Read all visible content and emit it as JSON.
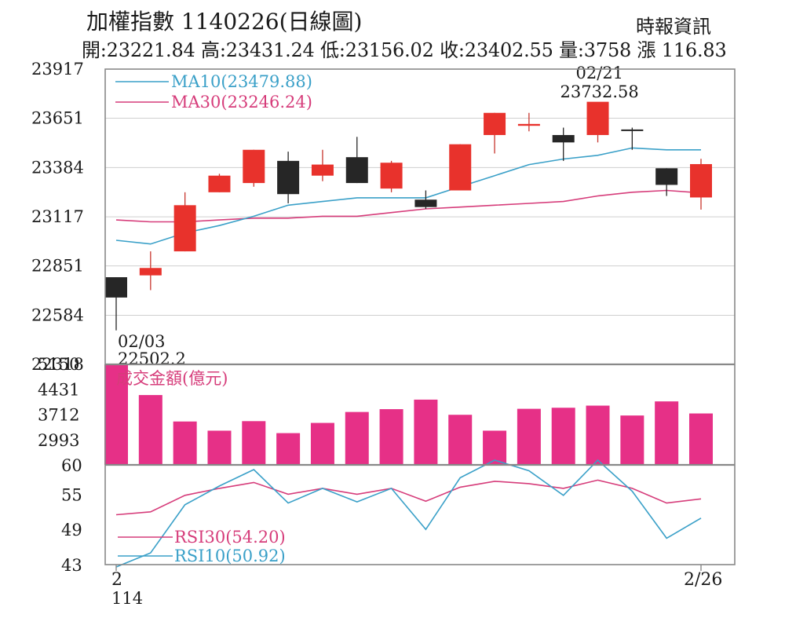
{
  "header": {
    "title": "加權指數 1140226(日線圖)",
    "source": "時報資訊",
    "stats": "開:23221.84 高:23431.24 低:23156.02 收:23402.55 量:3758 漲 116.83"
  },
  "chart_data": {
    "type": "candlestick",
    "price_panel": {
      "y_ticks": [
        23917,
        23651,
        23384,
        23117,
        22851,
        22584,
        22318
      ],
      "ylim": [
        22318,
        23917
      ],
      "legend": [
        {
          "label": "MA10(23479.88)",
          "color": "#3aa0c8"
        },
        {
          "label": "MA30(23246.24)",
          "color": "#d63c7a"
        }
      ],
      "annotations": [
        {
          "date_label": "02/03",
          "value_label": "22502.2",
          "index": 0
        },
        {
          "date_label": "02/21",
          "value_label": "23732.58",
          "index": 14
        }
      ],
      "candles": [
        {
          "open": 22790,
          "high": 22790,
          "low": 22502.2,
          "close": 22680
        },
        {
          "open": 22800,
          "high": 22930,
          "low": 22720,
          "close": 22840
        },
        {
          "open": 22930,
          "high": 23250,
          "low": 22930,
          "close": 23180
        },
        {
          "open": 23250,
          "high": 23350,
          "low": 23250,
          "close": 23340
        },
        {
          "open": 23300,
          "high": 23480,
          "low": 23280,
          "close": 23480
        },
        {
          "open": 23420,
          "high": 23470,
          "low": 23190,
          "close": 23240
        },
        {
          "open": 23340,
          "high": 23480,
          "low": 23310,
          "close": 23400
        },
        {
          "open": 23440,
          "high": 23550,
          "low": 23300,
          "close": 23300
        },
        {
          "open": 23270,
          "high": 23420,
          "low": 23250,
          "close": 23410
        },
        {
          "open": 23210,
          "high": 23260,
          "low": 23160,
          "close": 23170
        },
        {
          "open": 23260,
          "high": 23510,
          "low": 23260,
          "close": 23510
        },
        {
          "open": 23560,
          "high": 23680,
          "low": 23460,
          "close": 23680
        },
        {
          "open": 23610,
          "high": 23680,
          "low": 23580,
          "close": 23620
        },
        {
          "open": 23560,
          "high": 23600,
          "low": 23420,
          "close": 23520
        },
        {
          "open": 23560,
          "high": 23732.58,
          "low": 23520,
          "close": 23740
        },
        {
          "open": 23590,
          "high": 23600,
          "low": 23480,
          "close": 23585
        },
        {
          "open": 23380,
          "high": 23380,
          "low": 23230,
          "close": 23290
        },
        {
          "open": 23221.84,
          "high": 23431.24,
          "low": 23156.02,
          "close": 23402.55
        }
      ],
      "candle_colors": {
        "up": "#e8322c",
        "down": "#262626"
      },
      "ma10": [
        22990,
        22970,
        23030,
        23070,
        23120,
        23180,
        23200,
        23220,
        23220,
        23220,
        23280,
        23340,
        23400,
        23430,
        23450,
        23490,
        23480,
        23479.88
      ],
      "ma30": [
        23100,
        23090,
        23090,
        23100,
        23110,
        23110,
        23120,
        23120,
        23140,
        23160,
        23170,
        23180,
        23190,
        23200,
        23230,
        23250,
        23260,
        23246.24
      ]
    },
    "volume_panel": {
      "label": "成交金額(億元)",
      "y_ticks": [
        5150,
        4431,
        3712,
        2993
      ],
      "ylim": [
        2300,
        5150
      ],
      "values": [
        5150,
        4280,
        3530,
        3270,
        3540,
        3200,
        3490,
        3800,
        3880,
        4150,
        3720,
        3270,
        3890,
        3920,
        3980,
        3700,
        4100,
        3758
      ],
      "color": "#e63087"
    },
    "rsi_panel": {
      "y_ticks": [
        60,
        55,
        49,
        43
      ],
      "ylim": [
        43,
        60
      ],
      "legend": [
        {
          "label": "RSI30(54.20)",
          "color": "#d63c7a"
        },
        {
          "label": "RSI10(50.92)",
          "color": "#3aa0c8"
        }
      ],
      "rsi30": [
        51.5,
        52.0,
        54.8,
        56.0,
        57.0,
        55.0,
        56.0,
        55.0,
        56.0,
        53.8,
        56.2,
        57.2,
        56.8,
        56.0,
        57.4,
        56.0,
        53.5,
        54.2
      ],
      "rsi10": [
        42.6,
        45.0,
        53.2,
        56.4,
        59.2,
        53.5,
        56.0,
        53.7,
        56.0,
        49.0,
        57.8,
        60.8,
        59.0,
        54.8,
        60.8,
        55.5,
        47.5,
        50.92
      ]
    },
    "x_axis": {
      "tick_labels": [
        {
          "label": "2",
          "sublabel": "114",
          "index": 0
        },
        {
          "label": "2/26",
          "index": 17
        }
      ]
    }
  }
}
